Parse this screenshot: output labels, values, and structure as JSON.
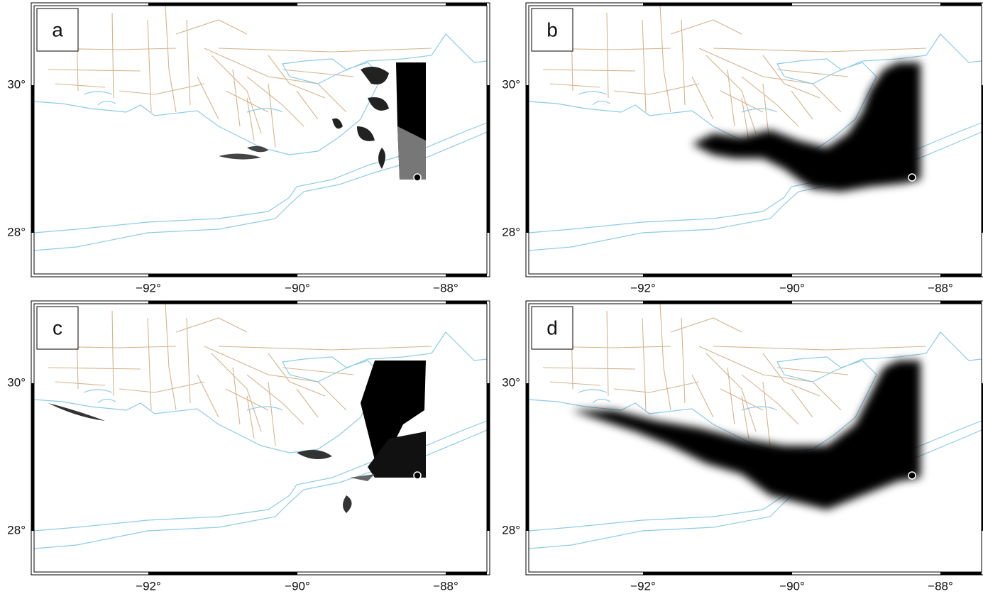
{
  "panels": [
    {
      "label": "a",
      "lat_labels": [
        "30°",
        "28°"
      ],
      "lon_labels": [
        "−92°",
        "−90°",
        "−88°"
      ]
    },
    {
      "label": "b",
      "lat_labels": [
        "30°",
        "28°"
      ],
      "lon_labels": [
        "−92°",
        "−90°",
        "−88°"
      ]
    },
    {
      "label": "c",
      "lat_labels": [
        "30°",
        "28°"
      ],
      "lon_labels": [
        "−92°",
        "−90°",
        "−88°"
      ]
    },
    {
      "label": "d",
      "lat_labels": [
        "30°",
        "28°"
      ],
      "lon_labels": [
        "−92°",
        "−90°",
        "−88°"
      ]
    }
  ]
}
